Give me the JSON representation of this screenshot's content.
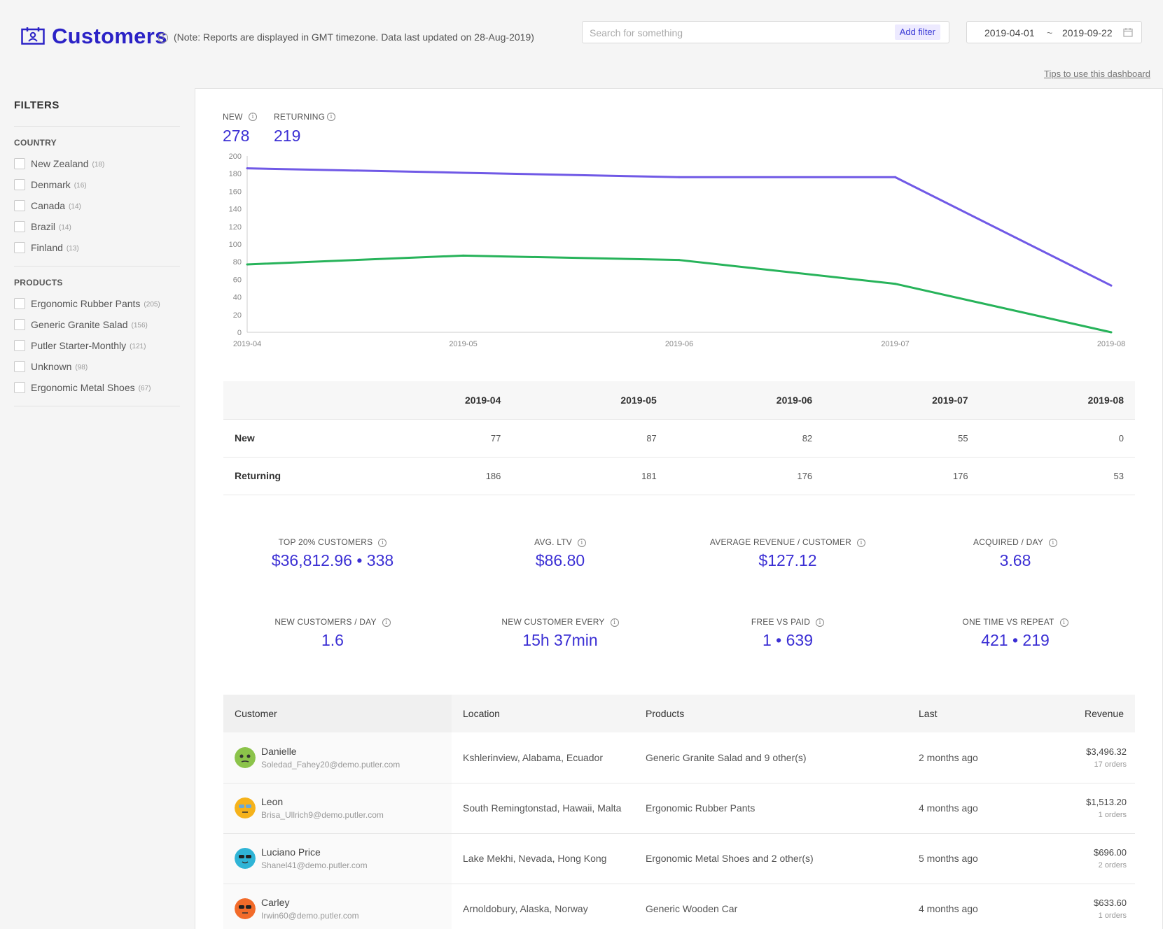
{
  "header": {
    "title": "Customers",
    "note": "(Note: Reports are displayed in GMT timezone. Data last updated on 28-Aug-2019)",
    "search_placeholder": "Search for something",
    "add_filter_label": "Add filter",
    "date_start": "2019-04-01",
    "date_separator": "~",
    "date_end": "2019-09-22",
    "tips_link": "Tips to use this dashboard"
  },
  "sidebar": {
    "title": "FILTERS",
    "country_title": "COUNTRY",
    "countries": [
      {
        "label": "New Zealand",
        "count": "(18)"
      },
      {
        "label": "Denmark",
        "count": "(16)"
      },
      {
        "label": "Canada",
        "count": "(14)"
      },
      {
        "label": "Brazil",
        "count": "(14)"
      },
      {
        "label": "Finland",
        "count": "(13)"
      }
    ],
    "products_title": "PRODUCTS",
    "products": [
      {
        "label": "Ergonomic Rubber Pants",
        "count": "(205)"
      },
      {
        "label": "Generic Granite Salad",
        "count": "(156)"
      },
      {
        "label": "Putler Starter-Monthly",
        "count": "(121)"
      },
      {
        "label": "Unknown",
        "count": "(98)"
      },
      {
        "label": "Ergonomic Metal Shoes",
        "count": "(67)"
      }
    ]
  },
  "metrics": {
    "new_label": "NEW",
    "new_value": "278",
    "returning_label": "RETURNING",
    "returning_value": "219"
  },
  "chart_data": {
    "type": "line",
    "x": [
      "2019-04",
      "2019-05",
      "2019-06",
      "2019-07",
      "2019-08"
    ],
    "ylim": [
      0,
      200
    ],
    "yticks": [
      "0",
      "20",
      "40",
      "60",
      "80",
      "100",
      "120",
      "140",
      "160",
      "180",
      "200"
    ],
    "series": [
      {
        "name": "New",
        "color": "#27b35a",
        "values": [
          77,
          87,
          82,
          55,
          0
        ]
      },
      {
        "name": "Returning",
        "color": "#7059e6",
        "values": [
          186,
          181,
          176,
          176,
          53
        ]
      }
    ]
  },
  "summary_table": {
    "columns": [
      "2019-04",
      "2019-05",
      "2019-06",
      "2019-07",
      "2019-08"
    ],
    "rows": [
      {
        "label": "New",
        "values": [
          "77",
          "87",
          "82",
          "55",
          "0"
        ]
      },
      {
        "label": "Returning",
        "values": [
          "186",
          "181",
          "176",
          "176",
          "53"
        ]
      }
    ]
  },
  "kpis": [
    {
      "label": "TOP 20% CUSTOMERS",
      "value": "$36,812.96 • 338"
    },
    {
      "label": "AVG. LTV",
      "value": "$86.80"
    },
    {
      "label": "AVERAGE REVENUE / CUSTOMER",
      "value": "$127.12"
    },
    {
      "label": "ACQUIRED / DAY",
      "value": "3.68"
    },
    {
      "label": "NEW CUSTOMERS / DAY",
      "value": "1.6"
    },
    {
      "label": "NEW CUSTOMER EVERY",
      "value": "15h 37min"
    },
    {
      "label": "FREE VS PAID",
      "value": "1 • 639"
    },
    {
      "label": "ONE TIME VS REPEAT",
      "value": "421 • 219"
    }
  ],
  "customers_table": {
    "headers": {
      "customer": "Customer",
      "location": "Location",
      "products": "Products",
      "last": "Last",
      "revenue": "Revenue"
    },
    "rows": [
      {
        "name": "Danielle",
        "email": "Soledad_Fahey20@demo.putler.com",
        "location": "Kshlerinview, Alabama, Ecuador",
        "products": "Generic Granite Salad and 9 other(s)",
        "last": "2 months ago",
        "revenue": "$3,496.32",
        "orders": "17 orders",
        "avatar_color": "#8bc34a"
      },
      {
        "name": "Leon",
        "email": "Brisa_Ullrich9@demo.putler.com",
        "location": "South Remingtonstad, Hawaii, Malta",
        "products": "Ergonomic Rubber Pants",
        "last": "4 months ago",
        "revenue": "$1,513.20",
        "orders": "1 orders",
        "avatar_color": "#f5b21b"
      },
      {
        "name": "Luciano Price",
        "email": "Shanel41@demo.putler.com",
        "location": "Lake Mekhi, Nevada, Hong Kong",
        "products": "Ergonomic Metal Shoes and 2 other(s)",
        "last": "5 months ago",
        "revenue": "$696.00",
        "orders": "2 orders",
        "avatar_color": "#2fb4d6"
      },
      {
        "name": "Carley",
        "email": "Irwin60@demo.putler.com",
        "location": "Arnoldobury, Alaska, Norway",
        "products": "Generic Wooden Car",
        "last": "4 months ago",
        "revenue": "$633.60",
        "orders": "1 orders",
        "avatar_color": "#f26b2a"
      }
    ]
  }
}
